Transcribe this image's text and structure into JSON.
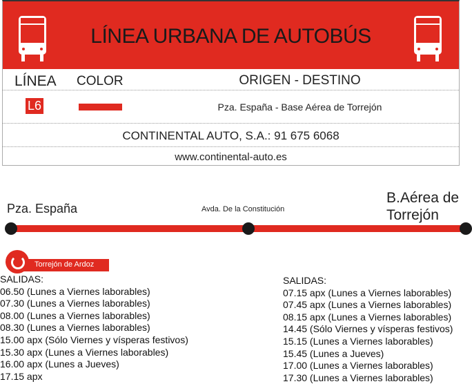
{
  "header": {
    "title": "LÍNEA URBANA DE AUTOBÚS",
    "bus_sign": "L6"
  },
  "table": {
    "col_line": "LÍNEA",
    "col_color": "COLOR",
    "col_route": "ORIGEN - DESTINO",
    "line": "L6",
    "line_color": "#e02a20",
    "route": "Pza. España - Base Aérea de Torrejón",
    "company": "CONTINENTAL AUTO, S.A.: 91 675 6068",
    "website": "www.continental-auto.es"
  },
  "route_map": {
    "stops": [
      "Pza. España",
      "Avda. De la Constitución",
      "B.Aérea de Torrejón"
    ]
  },
  "logo": {
    "text": "Torrejón de Ardoz"
  },
  "schedule": {
    "left": {
      "heading": "SALIDAS:",
      "times": [
        "06.50 (Lunes a Viernes laborables)",
        "07.30 (Lunes a Viernes laborables)",
        "08.00 (Lunes a Viernes laborables)",
        "08.30 (Lunes a Viernes laborables)",
        "15.00 apx (Sólo Viernes y vísperas festivos)",
        "15.30 apx (Lunes a Viernes laborables)",
        "16.00 apx (Lunes a Jueves)",
        "17.15 apx"
      ]
    },
    "right": {
      "heading": "SALIDAS:",
      "times": [
        "07.15 apx (Lunes a Viernes laborables)",
        "07.45 apx (Lunes a Viernes laborables)",
        "08.15 apx (Lunes a Viernes laborables)",
        "14.45 (Sólo Viernes y vísperas festivos)",
        "15.15 (Lunes a Viernes laborables)",
        "15.45 (Lunes a Jueves)",
        "17.00 (Lunes a Viernes laborables)",
        "17.30 (Lunes a Viernes laborables)"
      ]
    }
  }
}
